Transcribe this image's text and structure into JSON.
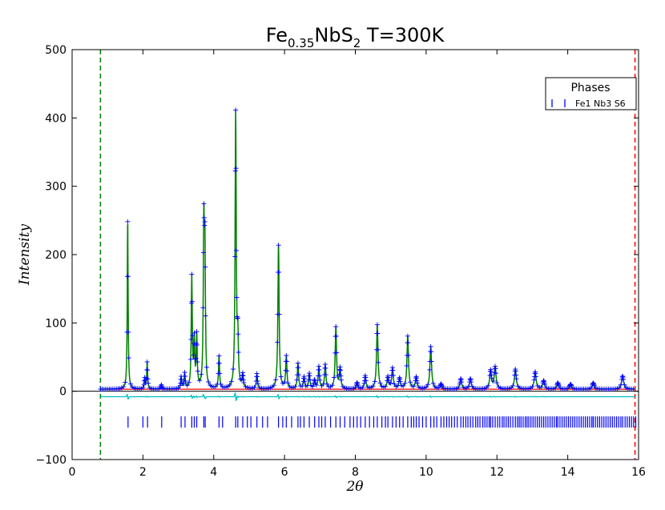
{
  "chart_data": {
    "type": "line",
    "title": {
      "base": "Fe",
      "sub1": "0.35",
      "middle": "NbS",
      "sub2": "2",
      "suffix": " T=300K"
    },
    "xlabel": "2θ",
    "ylabel": "Intensity",
    "xlim": [
      0,
      16
    ],
    "ylim": [
      -100,
      500
    ],
    "xticks": [
      0,
      2,
      4,
      6,
      8,
      10,
      12,
      14,
      16
    ],
    "yticks": [
      -100,
      0,
      100,
      200,
      300,
      400,
      500
    ],
    "xtick_labels": [
      "0",
      "2",
      "4",
      "6",
      "8",
      "10",
      "12",
      "14",
      "16"
    ],
    "ytick_labels": [
      "−100",
      "0",
      "100",
      "200",
      "300",
      "400",
      "500"
    ],
    "grid": false,
    "legend": {
      "title": "Phases",
      "placement": "top-right",
      "entries": [
        {
          "label": "Fe1 Nb3 S6",
          "color": "#0000ff",
          "marker": "tick"
        }
      ]
    },
    "range_limits": {
      "lower": 0.8,
      "upper": 15.9,
      "lower_color": "#008000",
      "upper_color": "#ff0000"
    },
    "zero_line": 0,
    "background_level": 3,
    "difference_offset": -8,
    "reflection_tick_y": -45,
    "colors": {
      "observed": "#0000ff",
      "calculated": "#008000",
      "background": "#ff0000",
      "difference": "#00bfbf",
      "reflections": "#0000ff"
    },
    "peaks": [
      [
        1.57,
        248
      ],
      [
        2.05,
        18
      ],
      [
        2.12,
        42
      ],
      [
        2.52,
        9
      ],
      [
        3.08,
        20
      ],
      [
        3.18,
        25
      ],
      [
        3.38,
        165
      ],
      [
        3.45,
        70
      ],
      [
        3.52,
        78
      ],
      [
        3.72,
        225
      ],
      [
        3.75,
        190
      ],
      [
        4.15,
        50
      ],
      [
        4.62,
        405
      ],
      [
        4.68,
        70
      ],
      [
        4.82,
        22
      ],
      [
        5.22,
        25
      ],
      [
        5.83,
        213
      ],
      [
        6.05,
        50
      ],
      [
        6.38,
        40
      ],
      [
        6.55,
        20
      ],
      [
        6.7,
        25
      ],
      [
        6.85,
        15
      ],
      [
        6.97,
        35
      ],
      [
        7.15,
        38
      ],
      [
        7.45,
        93
      ],
      [
        7.57,
        32
      ],
      [
        8.05,
        12
      ],
      [
        8.28,
        22
      ],
      [
        8.62,
        97
      ],
      [
        8.92,
        20
      ],
      [
        9.05,
        33
      ],
      [
        9.25,
        18
      ],
      [
        9.48,
        80
      ],
      [
        9.72,
        20
      ],
      [
        10.13,
        65
      ],
      [
        10.42,
        10
      ],
      [
        10.98,
        18
      ],
      [
        11.25,
        18
      ],
      [
        11.82,
        30
      ],
      [
        11.95,
        35
      ],
      [
        12.52,
        32
      ],
      [
        13.08,
        28
      ],
      [
        13.32,
        15
      ],
      [
        13.72,
        12
      ],
      [
        14.08,
        10
      ],
      [
        14.72,
        12
      ],
      [
        15.55,
        22
      ]
    ],
    "reflections": [
      1.58,
      2.0,
      2.13,
      2.53,
      3.08,
      3.19,
      3.38,
      3.45,
      3.52,
      3.72,
      3.76,
      4.15,
      4.25,
      4.62,
      4.68,
      4.82,
      4.95,
      5.05,
      5.22,
      5.38,
      5.52,
      5.83,
      5.95,
      6.05,
      6.2,
      6.38,
      6.45,
      6.55,
      6.7,
      6.85,
      6.97,
      7.05,
      7.15,
      7.3,
      7.45,
      7.57,
      7.7,
      7.85,
      7.95,
      8.05,
      8.15,
      8.28,
      8.4,
      8.52,
      8.62,
      8.75,
      8.85,
      8.92,
      9.05,
      9.15,
      9.25,
      9.35,
      9.48,
      9.58,
      9.65,
      9.72,
      9.8,
      9.9,
      10.0,
      10.13,
      10.22,
      10.3,
      10.42,
      10.5,
      10.58,
      10.65,
      10.72,
      10.8,
      10.88,
      10.98,
      11.05,
      11.12,
      11.18,
      11.25,
      11.32,
      11.4,
      11.46,
      11.52,
      11.6,
      11.66,
      11.72,
      11.78,
      11.82,
      11.88,
      11.95,
      12.02,
      12.08,
      12.15,
      12.2,
      12.26,
      12.32,
      12.38,
      12.45,
      12.52,
      12.58,
      12.63,
      12.68,
      12.74,
      12.8,
      12.85,
      12.9,
      12.96,
      13.02,
      13.08,
      13.14,
      13.2,
      13.26,
      13.32,
      13.38,
      13.44,
      13.5,
      13.56,
      13.62,
      13.68,
      13.72,
      13.78,
      13.84,
      13.9,
      13.96,
      14.02,
      14.08,
      14.14,
      14.2,
      14.26,
      14.32,
      14.38,
      14.44,
      14.5,
      14.56,
      14.62,
      14.68,
      14.72,
      14.78,
      14.84,
      14.9,
      14.96,
      15.02,
      15.08,
      15.14,
      15.2,
      15.26,
      15.32,
      15.38,
      15.44,
      15.5,
      15.55,
      15.62,
      15.68,
      15.74,
      15.8,
      15.86,
      15.92
    ]
  }
}
